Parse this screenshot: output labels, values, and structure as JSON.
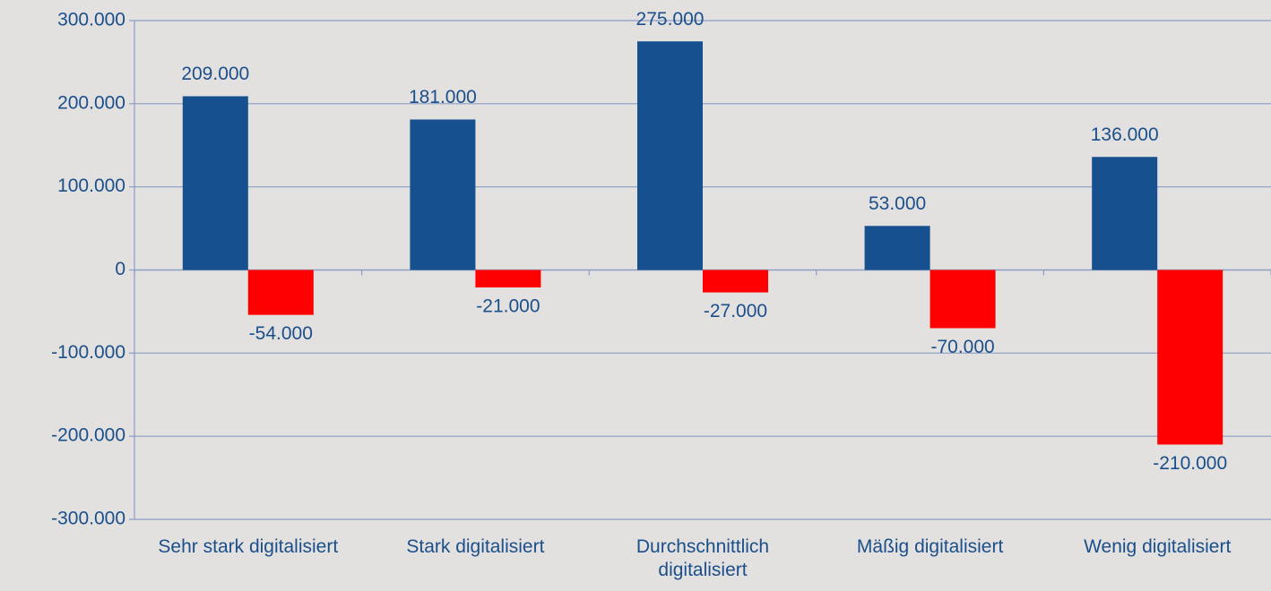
{
  "chart_data": {
    "type": "bar",
    "categories": [
      "Sehr stark digitalisiert",
      "Stark digitalisiert",
      "Durchschnittlich digitalisiert",
      "Mäßig digitalisiert",
      "Wenig digitalisiert"
    ],
    "series": [
      {
        "color": "#17508f",
        "values": [
          209000,
          181000,
          275000,
          53000,
          136000
        ],
        "value_labels": [
          "209.000",
          "181.000",
          "275.000",
          "53.000",
          "136.000"
        ]
      },
      {
        "color": "#ff0000",
        "values": [
          -54000,
          -21000,
          -27000,
          -70000,
          -210000
        ],
        "value_labels": [
          "-54.000",
          "-21.000",
          "-27.000",
          "-70.000",
          "-210.000"
        ]
      }
    ],
    "ylim": [
      -300000,
      300000
    ],
    "yticks": [
      {
        "value": -300000,
        "label": "-300.000"
      },
      {
        "value": -200000,
        "label": "-200.000"
      },
      {
        "value": -100000,
        "label": "-100.000"
      },
      0,
      {
        "value": 100000,
        "label": "100.000"
      },
      {
        "value": 200000,
        "label": "200.000"
      },
      {
        "value": 300000,
        "label": "300.000"
      }
    ],
    "grid": true
  }
}
